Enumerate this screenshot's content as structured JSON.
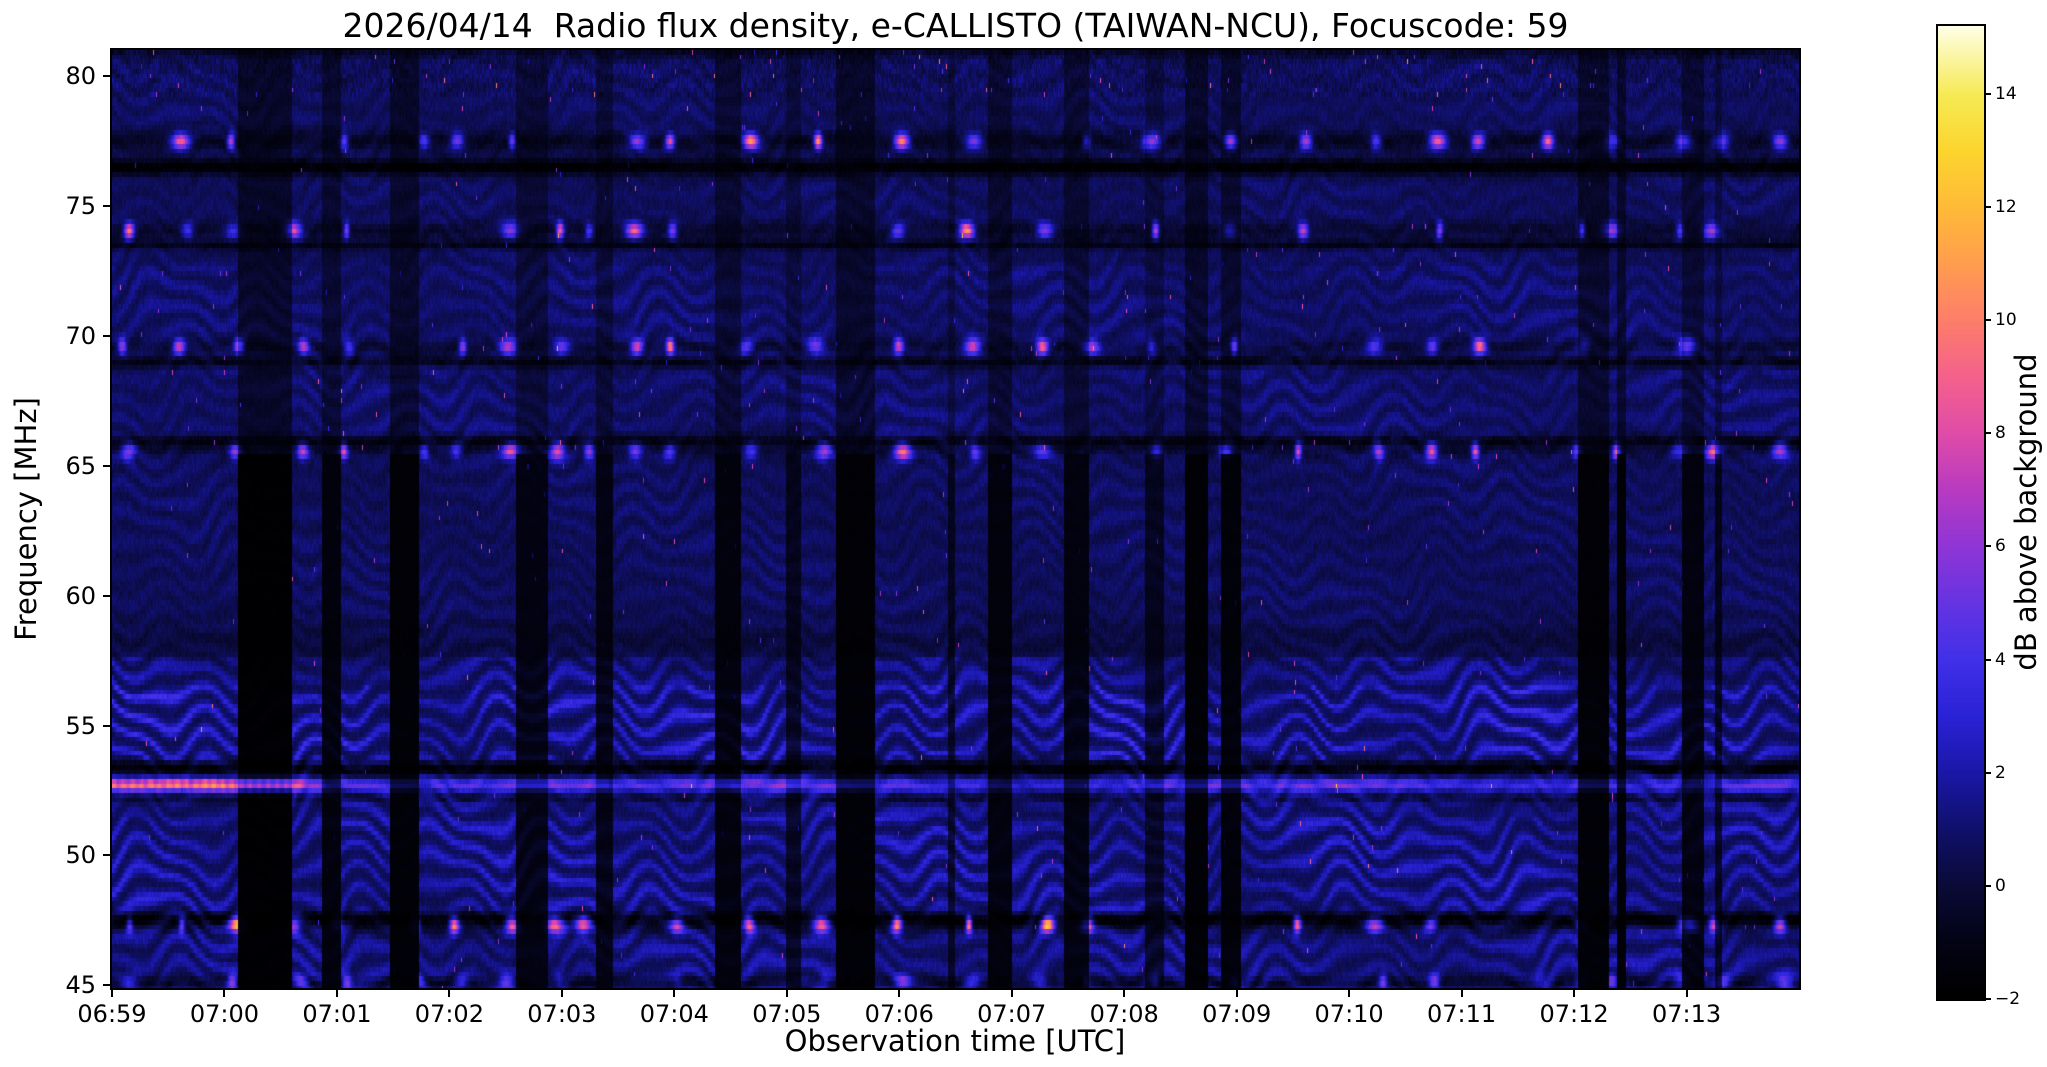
{
  "figure": {
    "background_color": "#ffffff"
  },
  "chart_data": {
    "type": "heatmap",
    "title": "2026/04/14  Radio flux density, e-CALLISTO (TAIWAN-NCU), Focuscode: 59",
    "xlabel": "Observation time [UTC]",
    "ylabel": "Frequency [MHz]",
    "colorbar_label": "dB above background",
    "x_tick_labels": [
      "06:59",
      "07:00",
      "07:01",
      "07:02",
      "07:03",
      "07:04",
      "07:05",
      "07:06",
      "07:07",
      "07:08",
      "07:09",
      "07:10",
      "07:11",
      "07:12",
      "07:13"
    ],
    "x_tick_interval_seconds": 60,
    "x_range_seconds": [
      0,
      900
    ],
    "y_tick_values": [
      45,
      50,
      55,
      60,
      65,
      70,
      75,
      80
    ],
    "ylim": [
      44.9,
      81.0
    ],
    "colorbar_tick_values": [
      -2,
      0,
      2,
      4,
      6,
      8,
      10,
      12,
      14
    ],
    "clim": [
      -2,
      15.2
    ],
    "colormap_stops": [
      [
        -2.0,
        "#000000"
      ],
      [
        -1.0,
        "#030315"
      ],
      [
        0.0,
        "#0a0a38"
      ],
      [
        1.0,
        "#10106b"
      ],
      [
        2.0,
        "#1a17a8"
      ],
      [
        3.0,
        "#2a22d6"
      ],
      [
        4.0,
        "#4130e8"
      ],
      [
        5.0,
        "#6633e2"
      ],
      [
        6.0,
        "#8f35d6"
      ],
      [
        7.0,
        "#b83ac1"
      ],
      [
        8.0,
        "#e04ca8"
      ],
      [
        9.0,
        "#f4618c"
      ],
      [
        10.0,
        "#fd7e6a"
      ],
      [
        11.0,
        "#ff9d4e"
      ],
      [
        12.0,
        "#ffba38"
      ],
      [
        13.0,
        "#fbd52e"
      ],
      [
        14.0,
        "#f6ea55"
      ],
      [
        15.2,
        "#ffffe6"
      ]
    ],
    "features": {
      "background_db": 1,
      "fringes": "wavy blue ionospheric interference fringes, strongest 45-57 MHz",
      "rfi_burst_bands_mhz": [
        77.5,
        74.05,
        69.6,
        65.55,
        47.32,
        45.12
      ],
      "dark_lanes_mhz": [
        81.0,
        76.5,
        73.5,
        69.0,
        65.95,
        58.2,
        53.35,
        52.2,
        47.6,
        45.1
      ],
      "carrier_line": {
        "freq_mhz": 52.72,
        "strong_db": 8,
        "strong_from": "06:59:00",
        "strong_until": "07:00:35",
        "faint_db": 3
      }
    }
  }
}
